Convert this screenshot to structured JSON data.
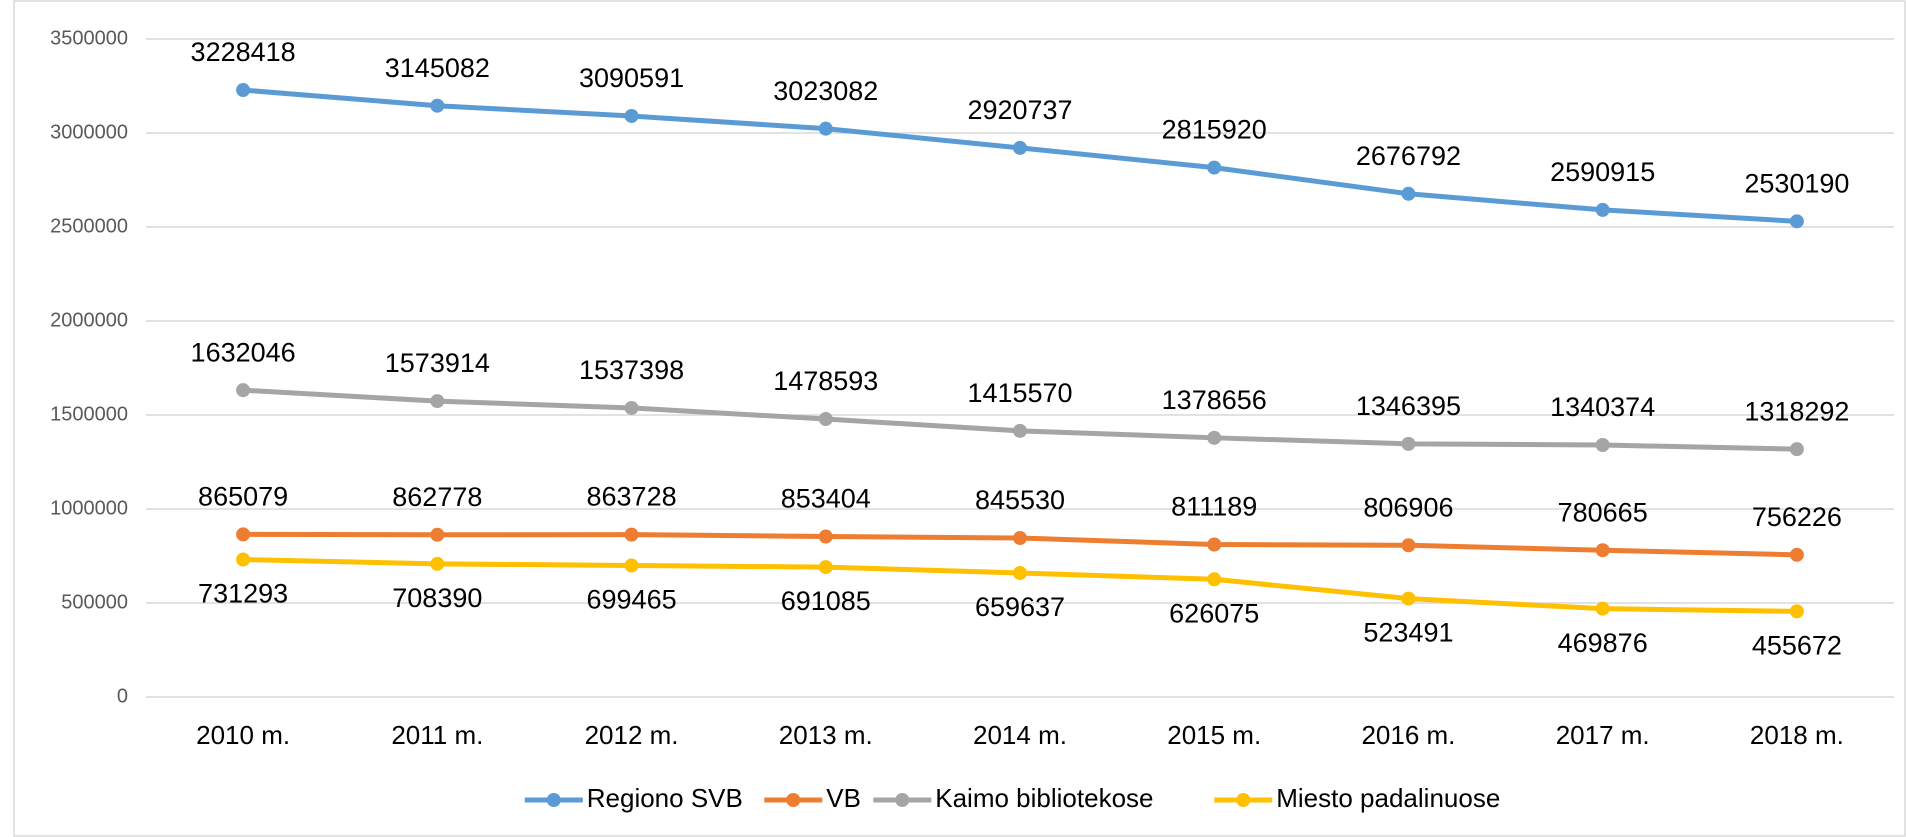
{
  "chart_data": {
    "type": "line",
    "categories": [
      "2010 m.",
      "2011 m.",
      "2012 m.",
      "2013 m.",
      "2014 m.",
      "2015 m.",
      "2016 m.",
      "2017 m.",
      "2018 m."
    ],
    "series": [
      {
        "name": "Regiono SVB",
        "color": "#5b9bd5",
        "values": [
          3228418,
          3145082,
          3090591,
          3023082,
          2920737,
          2815920,
          2676792,
          2590915,
          2530190
        ]
      },
      {
        "name": "VB",
        "color": "#ed7d31",
        "values": [
          865079,
          862778,
          863728,
          853404,
          845530,
          811189,
          806906,
          780665,
          756226
        ]
      },
      {
        "name": "Kaimo bibliotekose",
        "color": "#a5a5a5",
        "values": [
          1632046,
          1573914,
          1537398,
          1478593,
          1415570,
          1378656,
          1346395,
          1340374,
          1318292
        ]
      },
      {
        "name": "Miesto padalinuose",
        "color": "#ffc000",
        "values": [
          731293,
          708390,
          699465,
          691085,
          659637,
          626075,
          523491,
          469876,
          455672
        ]
      }
    ],
    "ylim": [
      0,
      3500000
    ],
    "yticks": [
      0,
      500000,
      1000000,
      1500000,
      2000000,
      2500000,
      3000000,
      3500000
    ],
    "grid": true,
    "legend": "bottom"
  }
}
